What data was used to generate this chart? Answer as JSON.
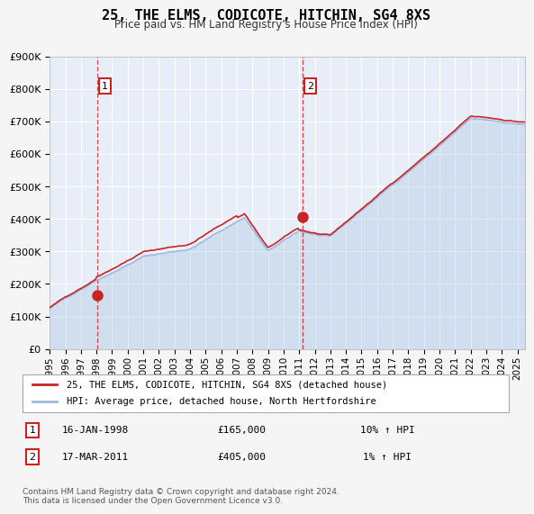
{
  "title": "25, THE ELMS, CODICOTE, HITCHIN, SG4 8XS",
  "subtitle": "Price paid vs. HM Land Registry's House Price Index (HPI)",
  "bg_color": "#f0f4ff",
  "plot_bg_color": "#e8eef8",
  "grid_color": "#ffffff",
  "house_color": "#cc2222",
  "hpi_color": "#99bbdd",
  "sale1_date": 1998.04,
  "sale1_price": 165000,
  "sale2_date": 2011.21,
  "sale2_price": 405000,
  "legend1": "25, THE ELMS, CODICOTE, HITCHIN, SG4 8XS (detached house)",
  "legend2": "HPI: Average price, detached house, North Hertfordshire",
  "note1_label": "1",
  "note1_date": "16-JAN-1998",
  "note1_price": "£165,000",
  "note1_hpi": "10% ↑ HPI",
  "note2_label": "2",
  "note2_date": "17-MAR-2011",
  "note2_price": "£405,000",
  "note2_hpi": "1% ↑ HPI",
  "copyright": "Contains HM Land Registry data © Crown copyright and database right 2024.\nThis data is licensed under the Open Government Licence v3.0.",
  "ylim": [
    0,
    900000
  ],
  "xlim_start": 1995.0,
  "xlim_end": 2025.5
}
